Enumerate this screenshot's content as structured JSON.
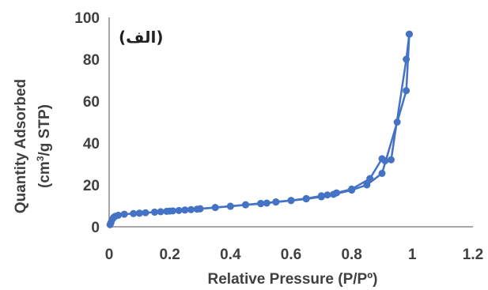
{
  "chart_data": {
    "type": "line",
    "panel_label": "(الف)",
    "xlabel": "Relative Pressure (P/Pº)",
    "ylabel_line1": "Quantity Adsorbed",
    "ylabel_line2_prefix": "(cm",
    "ylabel_line2_sup": "3",
    "ylabel_line2_suffix": "/g STP)",
    "xlim": [
      0,
      1.2
    ],
    "ylim": [
      0,
      100
    ],
    "x_ticks": [
      0,
      0.2,
      0.4,
      0.6,
      0.8,
      1.0,
      1.2
    ],
    "x_tick_labels": [
      "0",
      "0.2",
      "0.4",
      "0.6",
      "0.8",
      "1",
      "1.2"
    ],
    "y_ticks": [
      0,
      20,
      40,
      60,
      80,
      100
    ],
    "y_tick_labels": [
      "0",
      "20",
      "40",
      "60",
      "80",
      "100"
    ],
    "color": "#4472C4",
    "series": [
      {
        "x": [
          0.003,
          0.006,
          0.01,
          0.015,
          0.02,
          0.03,
          0.05,
          0.08,
          0.1,
          0.12,
          0.15,
          0.17,
          0.19,
          0.21,
          0.23,
          0.25,
          0.27,
          0.29,
          0.3,
          0.35,
          0.4,
          0.45,
          0.5,
          0.55,
          0.6,
          0.65,
          0.7,
          0.74,
          0.8,
          0.85,
          0.9,
          0.95,
          0.98,
          0.99
        ],
        "y": [
          1,
          2,
          3.5,
          4.5,
          5,
          5.5,
          6,
          6.3,
          6.5,
          6.7,
          7,
          7.2,
          7.4,
          7.6,
          7.8,
          8,
          8.2,
          8.4,
          8.6,
          9.2,
          9.8,
          10.5,
          11.2,
          11.8,
          12.5,
          13.3,
          14.3,
          15.5,
          17.5,
          20,
          25.5,
          50,
          65,
          92
        ]
      },
      {
        "x": [
          0.99,
          0.98,
          0.93,
          0.91,
          0.9,
          0.86,
          0.8,
          0.75,
          0.72,
          0.7,
          0.65,
          0.6,
          0.55,
          0.52,
          0.5,
          0.45,
          0.4,
          0.35,
          0.3,
          0.25,
          0.2,
          0.15,
          0.1
        ],
        "y": [
          92,
          80,
          32,
          31.5,
          32.5,
          23,
          18,
          16.2,
          15.2,
          14.8,
          13.5,
          12.6,
          11.9,
          11.3,
          11,
          10.5,
          9.8,
          9.2,
          8.6,
          8,
          7.5,
          7,
          6.5
        ]
      }
    ]
  }
}
